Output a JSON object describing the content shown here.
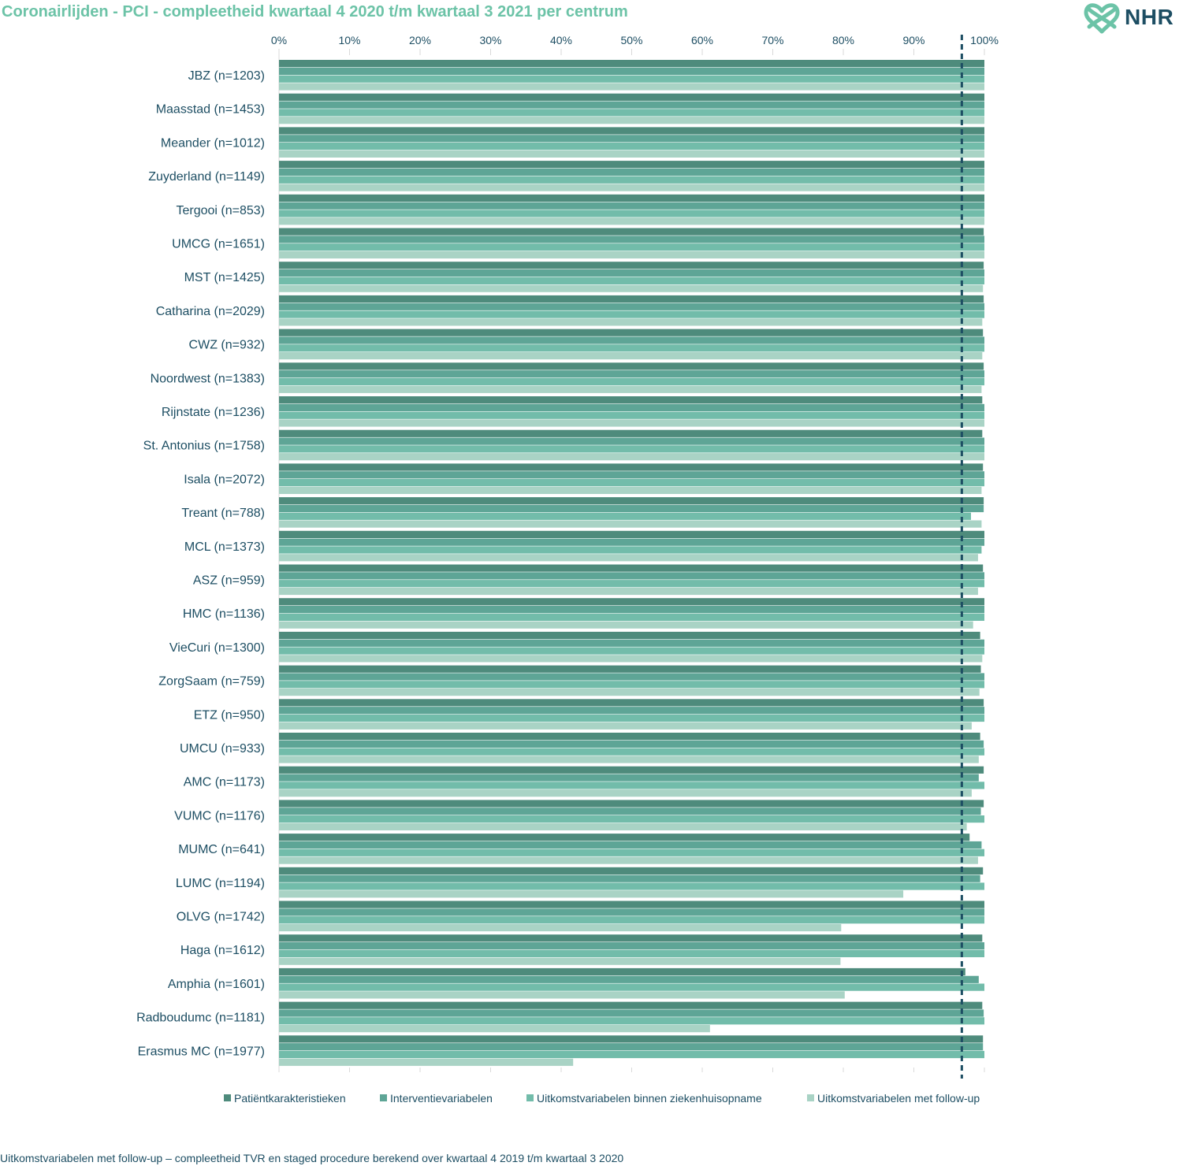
{
  "title": "Coronairlijden - PCI - compleetheid kwartaal 4 2020 t/m kwartaal 3 2021 per centrum",
  "logo": {
    "text": "NHR",
    "icon": "heart-knot-icon"
  },
  "footnote": "Uitkomstvariabelen met follow-up – compleetheid TVR en staged procedure berekend over kwartaal 4 2019 t/m kwartaal 3 2020",
  "colors": {
    "axis_text": "#1d4e63",
    "reference_line": "#1d4e63",
    "grid": "#d9d9d9"
  },
  "chart_data": {
    "type": "bar",
    "orientation": "horizontal",
    "title": "Coronairlijden - PCI - compleetheid kwartaal 4 2020 t/m kwartaal 3 2021 per centrum",
    "xlim": [
      0,
      100
    ],
    "x_ticks": [
      "0%",
      "10%",
      "20%",
      "30%",
      "40%",
      "50%",
      "60%",
      "70%",
      "80%",
      "90%",
      "100%"
    ],
    "x_axis_position": "top",
    "reference_line": 96.8,
    "legend_position": "bottom",
    "categories": [
      "JBZ (n=1203)",
      "Maasstad (n=1453)",
      "Meander (n=1012)",
      "Zuyderland (n=1149)",
      "Tergooi (n=853)",
      "UMCG (n=1651)",
      "MST (n=1425)",
      "Catharina (n=2029)",
      "CWZ (n=932)",
      "Noordwest (n=1383)",
      "Rijnstate (n=1236)",
      "St. Antonius (n=1758)",
      "Isala (n=2072)",
      "Treant (n=788)",
      "MCL (n=1373)",
      "ASZ (n=959)",
      "HMC (n=1136)",
      "VieCuri (n=1300)",
      "ZorgSaam (n=759)",
      "ETZ (n=950)",
      "UMCU (n=933)",
      "AMC (n=1173)",
      "VUMC (n=1176)",
      "MUMC (n=641)",
      "LUMC (n=1194)",
      "OLVG (n=1742)",
      "Haga (n=1612)",
      "Amphia (n=1601)",
      "Radboudumc (n=1181)",
      "Erasmus MC (n=1977)"
    ],
    "series": [
      {
        "name": "Patiëntkarakteristieken",
        "color": "#4e8b7c",
        "values": [
          100,
          100,
          100,
          100,
          100,
          99.9,
          99.9,
          99.9,
          99.8,
          99.9,
          99.7,
          99.7,
          99.8,
          99.9,
          100,
          99.8,
          100,
          99.4,
          99.5,
          99.9,
          99.4,
          99.9,
          99.9,
          97.9,
          99.8,
          100,
          99.7,
          97.3,
          99.7,
          99.8
        ]
      },
      {
        "name": "Interventievariabelen",
        "color": "#5ea596",
        "values": [
          100,
          100,
          100,
          100,
          100,
          100,
          100,
          100,
          100,
          100,
          100,
          100,
          100,
          99.9,
          100,
          100,
          100,
          100,
          100,
          100,
          99.9,
          99.2,
          99.5,
          99.6,
          99.4,
          100,
          100,
          99.2,
          99.9,
          99.8
        ]
      },
      {
        "name": "Uitkomstvariabelen binnen ziekenhuisopname",
        "color": "#72bcaa",
        "values": [
          100,
          100,
          100,
          100,
          100,
          100,
          100,
          100,
          100,
          100,
          100,
          100,
          100,
          98.1,
          99.6,
          100,
          100,
          100,
          100,
          100,
          100,
          100,
          100,
          100,
          100,
          100,
          100,
          100,
          100,
          100
        ]
      },
      {
        "name": "Uitkomstvariabelen met follow-up",
        "color": "#a9d3c5",
        "values": [
          100,
          100,
          100,
          100,
          100,
          100,
          99.8,
          99.7,
          99.7,
          99.6,
          100,
          100,
          99.6,
          99.6,
          99.1,
          99.1,
          98.4,
          99.7,
          99.3,
          98.2,
          99.2,
          98.2,
          97.5,
          99.1,
          88.5,
          79.7,
          79.6,
          80.2,
          61.1,
          41.7
        ]
      }
    ]
  }
}
